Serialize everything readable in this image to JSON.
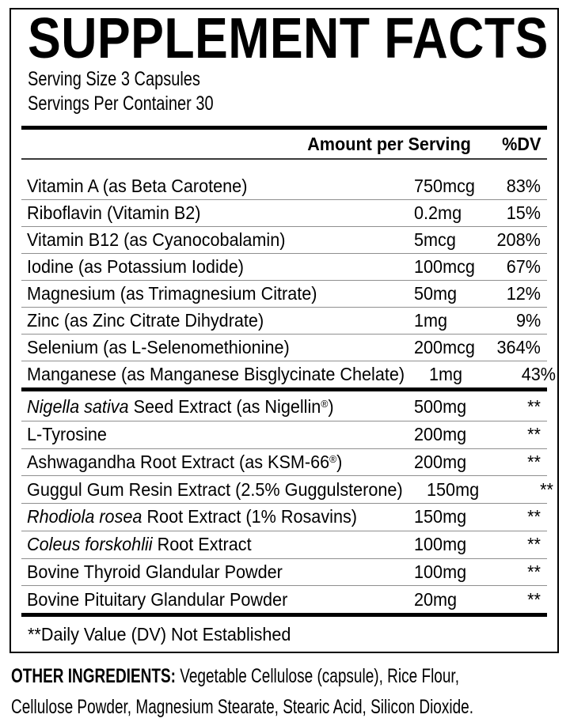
{
  "panel": {
    "title": "SUPPLEMENT FACTS",
    "serving_size": "Serving Size 3 Capsules",
    "servings_per_container": "Servings Per Container 30",
    "table": {
      "amount_header": "Amount per Serving",
      "dv_header": "%DV",
      "sections": [
        {
          "rows": [
            {
              "name": "Vitamin A (as Beta Carotene)",
              "amount": "750mcg",
              "dv": "83%"
            },
            {
              "name": "Riboflavin (Vitamin B2)",
              "amount": "0.2mg",
              "dv": "15%"
            },
            {
              "name": "Vitamin B12 (as Cyanocobalamin)",
              "amount": "5mcg",
              "dv": "208%"
            },
            {
              "name": "Iodine (as Potassium Iodide)",
              "amount": "100mcg",
              "dv": "67%"
            },
            {
              "name": "Magnesium (as Trimagnesium Citrate)",
              "amount": "50mg",
              "dv": "12%"
            },
            {
              "name": "Zinc (as Zinc Citrate Dihydrate)",
              "amount": "1mg",
              "dv": "9%"
            },
            {
              "name": "Selenium (as L-Selenomethionine)",
              "amount": "200mcg",
              "dv": "364%"
            },
            {
              "name": "Manganese (as Manganese Bisglycinate Chelate)",
              "amount": "1mg",
              "dv": "43%"
            }
          ]
        },
        {
          "rows": [
            {
              "name_italic": "Nigella sativa",
              "name": " Seed Extract (as Nigellin®)",
              "amount": "500mg",
              "dv": "**"
            },
            {
              "name": "L-Tyrosine",
              "amount": "200mg",
              "dv": "**"
            },
            {
              "name": "Ashwagandha Root Extract (as KSM-66®)",
              "amount": "200mg",
              "dv": "**"
            },
            {
              "name": "Guggul Gum Resin Extract (2.5% Guggulsterone)",
              "amount": "150mg",
              "dv": "**"
            },
            {
              "name_italic": "Rhodiola rosea",
              "name": " Root Extract (1% Rosavins)",
              "amount": "150mg",
              "dv": "**"
            },
            {
              "name_italic": "Coleus forskohlii",
              "name": " Root Extract",
              "amount": "100mg",
              "dv": "**"
            },
            {
              "name": "Bovine Thyroid Glandular Powder",
              "amount": "100mg",
              "dv": "**"
            },
            {
              "name": "Bovine Pituitary Glandular Powder",
              "amount": "20mg",
              "dv": "**"
            }
          ]
        }
      ],
      "footnote": "**Daily Value (DV) Not Established"
    }
  },
  "other_ingredients": {
    "label": "OTHER INGREDIENTS:",
    "line1_rest": " Vegetable Cellulose (capsule), Rice Flour,",
    "line2": "Cellulose Powder, Magnesium Stearate, Stearic Acid, Silicon Dioxide."
  },
  "colors": {
    "text": "#000000",
    "background": "#ffffff",
    "separator": "#8f8f8f",
    "header_rule": "#3a3a3a",
    "thick_bar": "#000000"
  }
}
